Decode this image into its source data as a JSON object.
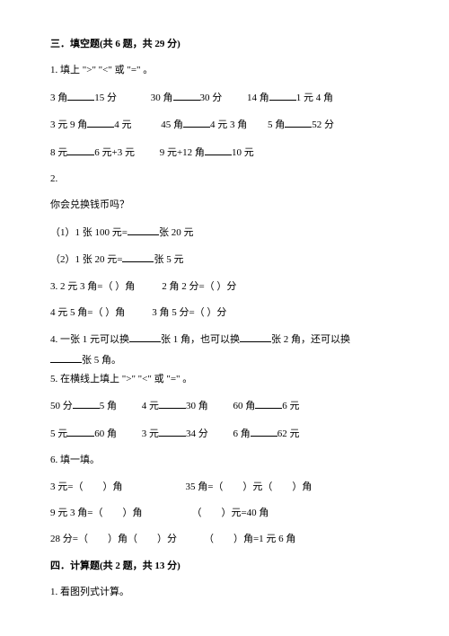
{
  "section3": {
    "title": "三．填空题(共 6 题，共 29 分)",
    "q1": {
      "prompt": "1. 填上 \">\" \"<\" 或 \"=\" 。",
      "row1": {
        "a1": "3 角",
        "a2": "15 分",
        "b1": "30 角",
        "b2": "30 分",
        "c1": "14 角",
        "c2": "1 元 4 角"
      },
      "row2": {
        "a1": "3 元 9 角",
        "a2": "4 元",
        "b1": "45 角",
        "b2": "4 元 3 角",
        "c1": "5 角",
        "c2": "52 分"
      },
      "row3": {
        "a1": "8 元",
        "a2": "6 元+3 元",
        "b1": "9 元+12 角",
        "b2": "10 元"
      }
    },
    "q2": {
      "num": "2.",
      "prompt": "你会兑换钱币吗？",
      "s1a": "（1）1 张 100 元=",
      "s1b": "张 20 元",
      "s2a": "（2）1 张 20 元=",
      "s2b": "张 5 元"
    },
    "q3": {
      "a": "3. 2 元 3 角=（  ）角",
      "b": "2 角 2 分=（  ）分",
      "c": "4 元 5 角=（  ）角",
      "d": "3 角 5 分=（  ）分"
    },
    "q4": {
      "a": "4. 一张 1 元可以换",
      "b": "张 1 角，也可以换",
      "c": "张 2 角，还可以换",
      "d": "张 5 角。"
    },
    "q5": {
      "prompt": "5. 在横线上填上 \">\" \"<\" 或 \"=\" 。",
      "row1": {
        "a1": "50 分",
        "a2": "5 角",
        "b1": "4 元",
        "b2": "30 角",
        "c1": "60 角",
        "c2": "6 元"
      },
      "row2": {
        "a1": "5 元",
        "a2": "60 角",
        "b1": "3 元",
        "b2": "34 分",
        "c1": "6 角",
        "c2": "62 元"
      }
    },
    "q6": {
      "prompt": "6. 填一填。",
      "r1a": "3 元=（　　）角",
      "r1b": "35 角=（　　）元（　　）角",
      "r2a": "9 元 3 角=（　　）角",
      "r2b": "（　　）元=40 角",
      "r3a": "28 分=（　　）角（　　）分",
      "r3b": "（　　）角=1 元 6 角"
    }
  },
  "section4": {
    "title": "四．计算题(共 2 题，共 13 分)",
    "q1": "1. 看图列式计算。"
  }
}
